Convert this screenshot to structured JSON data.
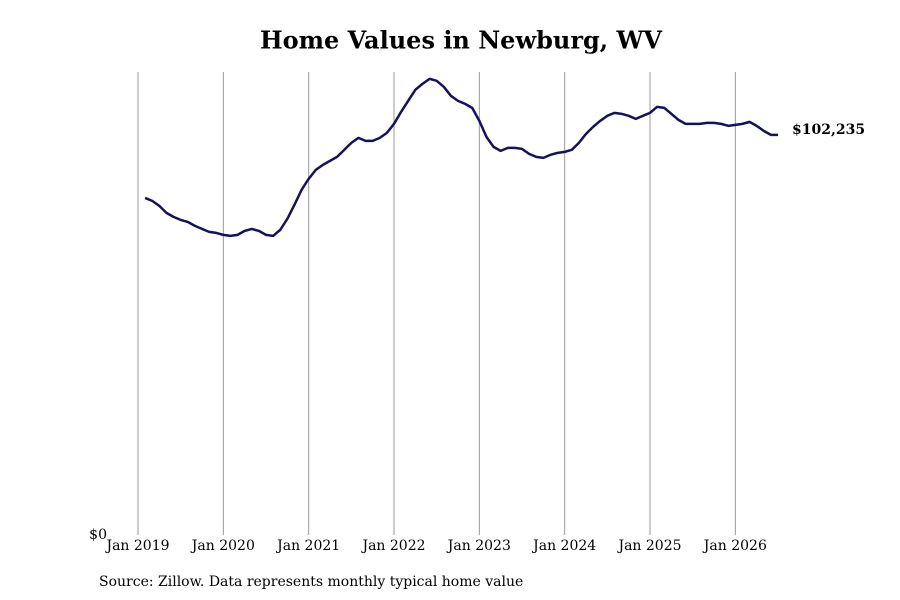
{
  "chart_data": {
    "type": "line",
    "title": "Home Values in Newburg, WV",
    "source": "Source: Zillow. Data represents monthly typical home value",
    "x": [
      "2019-02",
      "2019-03",
      "2019-04",
      "2019-05",
      "2019-06",
      "2019-07",
      "2019-08",
      "2019-09",
      "2019-10",
      "2019-11",
      "2019-12",
      "2020-01",
      "2020-02",
      "2020-03",
      "2020-04",
      "2020-05",
      "2020-06",
      "2020-07",
      "2020-08",
      "2020-09",
      "2020-10",
      "2020-11",
      "2020-12",
      "2021-01",
      "2021-02",
      "2021-03",
      "2021-04",
      "2021-05",
      "2021-06",
      "2021-07",
      "2021-08",
      "2021-09",
      "2021-10",
      "2021-11",
      "2021-12",
      "2022-01",
      "2022-02",
      "2022-03",
      "2022-04",
      "2022-05",
      "2022-06",
      "2022-07",
      "2022-08",
      "2022-09",
      "2022-10",
      "2022-11",
      "2022-12",
      "2023-01",
      "2023-02",
      "2023-03",
      "2023-04",
      "2023-05",
      "2023-06",
      "2023-07",
      "2023-08",
      "2023-09",
      "2023-10",
      "2023-11",
      "2023-12",
      "2024-01",
      "2024-02",
      "2024-03",
      "2024-04",
      "2024-05",
      "2024-06",
      "2024-07",
      "2024-08",
      "2024-09",
      "2024-10",
      "2024-11",
      "2024-12",
      "2025-01",
      "2025-02",
      "2025-03",
      "2025-04",
      "2025-05",
      "2025-06",
      "2025-07",
      "2025-08",
      "2025-09",
      "2025-10",
      "2025-11",
      "2025-12",
      "2026-01",
      "2026-02",
      "2026-03",
      "2026-04",
      "2026-05",
      "2026-06",
      "2026-07"
    ],
    "series": [
      {
        "name": "Typical home value",
        "color": "#14125e",
        "values": [
          86130,
          85370,
          84090,
          82300,
          81280,
          80510,
          80000,
          78980,
          78210,
          77450,
          77190,
          76680,
          76420,
          76680,
          77700,
          78210,
          77700,
          76680,
          76420,
          77960,
          80770,
          84350,
          88180,
          91000,
          93290,
          94570,
          95590,
          96620,
          98410,
          100200,
          101470,
          100700,
          100700,
          101470,
          102750,
          105050,
          108120,
          110930,
          113740,
          115270,
          116550,
          116040,
          114510,
          112210,
          110930,
          110160,
          109140,
          105820,
          101730,
          99170,
          98150,
          98920,
          98920,
          98660,
          97380,
          96620,
          96360,
          97130,
          97640,
          97890,
          98410,
          100200,
          102500,
          104280,
          105820,
          107100,
          107860,
          107610,
          107100,
          106330,
          107100,
          107860,
          109400,
          109140,
          107610,
          106070,
          105050,
          105050,
          105050,
          105310,
          105310,
          105050,
          104540,
          104800,
          105050,
          105560,
          104540,
          103260,
          102240,
          102235
        ],
        "last_value_label": "$102,235"
      }
    ],
    "xlim": [
      "2019-01",
      "2026-07"
    ],
    "xticks": [
      {
        "value": "2019-01",
        "label": "Jan 2019"
      },
      {
        "value": "2020-01",
        "label": "Jan 2020"
      },
      {
        "value": "2021-01",
        "label": "Jan 2021"
      },
      {
        "value": "2022-01",
        "label": "Jan 2022"
      },
      {
        "value": "2023-01",
        "label": "Jan 2023"
      },
      {
        "value": "2024-01",
        "label": "Jan 2024"
      },
      {
        "value": "2025-01",
        "label": "Jan 2025"
      },
      {
        "value": "2026-01",
        "label": "Jan 2026"
      }
    ],
    "ylim": [
      0,
      118300
    ],
    "yticks": [
      {
        "value": 0,
        "label": "$0"
      }
    ],
    "grid": "x"
  }
}
